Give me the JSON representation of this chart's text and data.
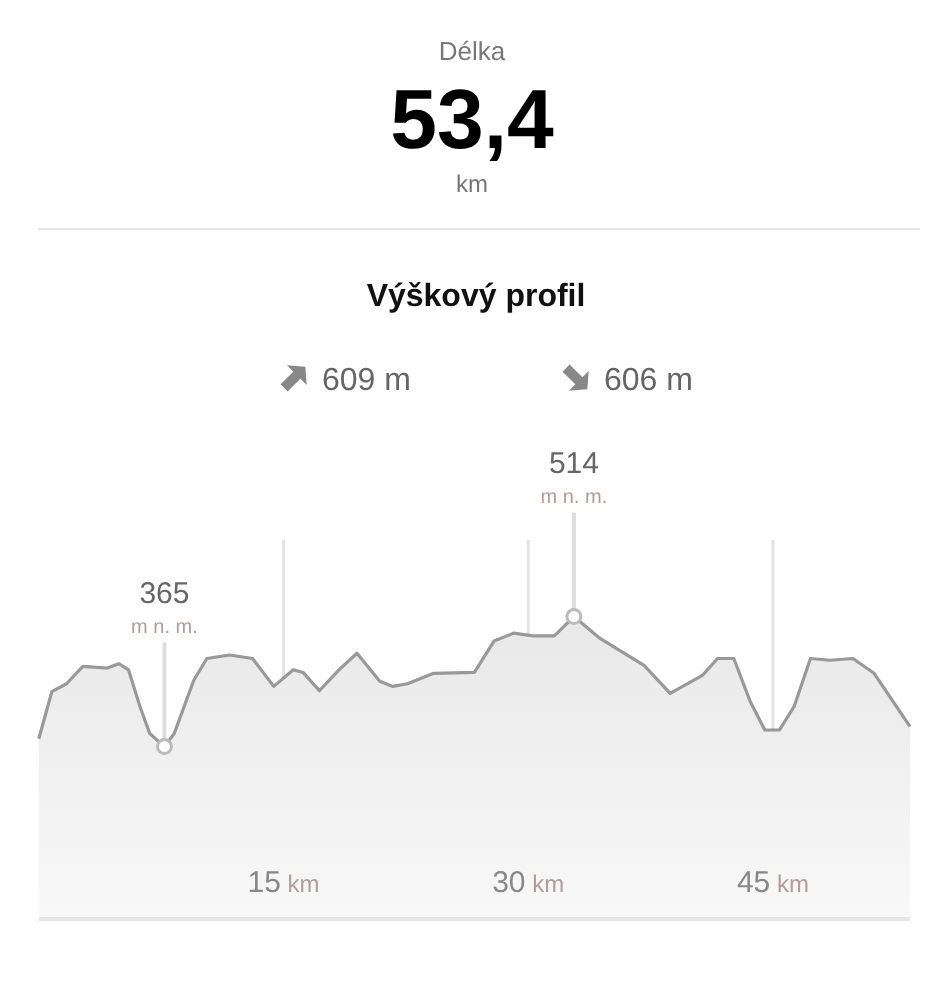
{
  "chart_data": {
    "type": "area",
    "title": "Výškový profil",
    "annotations": [
      "Délka",
      "53,4",
      "km",
      "609 m",
      "606 m"
    ],
    "x": [
      0,
      0.8,
      1.7,
      2.7,
      4.2,
      4.9,
      5.5,
      6.2,
      6.8,
      7.7,
      8.3,
      9.5,
      10.3,
      11.7,
      13.1,
      14.4,
      15.6,
      16.2,
      17.2,
      18.4,
      19.5,
      20.9,
      21.7,
      22.6,
      24.2,
      26.7,
      27.9,
      29.1,
      30.3,
      31.6,
      32.8,
      34.4,
      37.1,
      38.7,
      40.7,
      41.6,
      42.6,
      43.6,
      44.5,
      45.4,
      46.3,
      47.3,
      48.5,
      49.9,
      51.2,
      53.4
    ],
    "series": [
      {
        "color": "#999999",
        "values": [
          374,
          428,
          437,
          457,
          455,
          460,
          453,
          411,
          380,
          365,
          380,
          441,
          466,
          470,
          466,
          434,
          453,
          450,
          429,
          453,
          472,
          440,
          434,
          437,
          449,
          450,
          486,
          495,
          492,
          492,
          514,
          489,
          458,
          426,
          447,
          466,
          466,
          417,
          384,
          384,
          411,
          466,
          464,
          466,
          449,
          388
        ],
        "value_labels": [
          null,
          null,
          null,
          null,
          null,
          null,
          null,
          null,
          null,
          "365 m n. m.",
          null,
          null,
          null,
          null,
          null,
          null,
          null,
          null,
          null,
          null,
          null,
          null,
          null,
          null,
          null,
          null,
          null,
          null,
          null,
          null,
          "514 m n. m.",
          null,
          null,
          null,
          null,
          null,
          null,
          null,
          null,
          null,
          null,
          null,
          null,
          null,
          null,
          null
        ]
      }
    ],
    "xlim": [
      0,
      53.4
    ],
    "xticks": [
      {
        "value": 15,
        "label": "15 km"
      },
      {
        "value": 30,
        "label": "30 km"
      },
      {
        "value": 45,
        "label": "45 km"
      }
    ],
    "tick_labels": "x",
    "grid": "x"
  }
}
